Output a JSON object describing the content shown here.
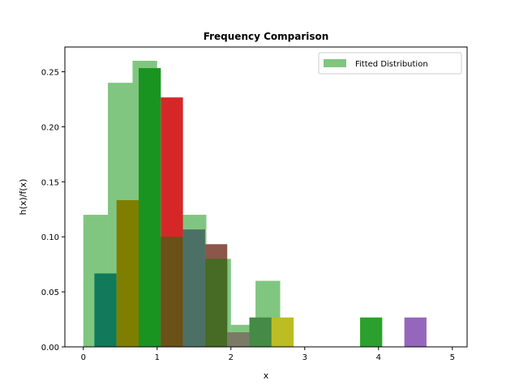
{
  "chart_data": {
    "type": "bar",
    "title": "Frequency Comparison",
    "xlabel": "x",
    "ylabel": "h(x)/f(x)",
    "xlim": [
      -0.25,
      5.2
    ],
    "ylim": [
      0,
      0.2725
    ],
    "xticks": [
      0,
      1,
      2,
      3,
      4,
      5
    ],
    "yticks": [
      0.0,
      0.05,
      0.1,
      0.15,
      0.2,
      0.25
    ],
    "grid": false,
    "legend": {
      "position": "upper-right",
      "entries": [
        "Fitted Distribution"
      ]
    },
    "series": [
      {
        "name": "Fitted Distribution",
        "color": "#2ca02c",
        "opacity": 0.6,
        "bin_edges": [
          0.0,
          0.333,
          0.667,
          1.0,
          1.333,
          1.667,
          2.0,
          2.333,
          2.667
        ],
        "values": [
          0.12,
          0.24,
          0.26,
          0.1,
          0.12,
          0.08,
          0.02,
          0.06
        ]
      },
      {
        "color": "#1f77b4",
        "opacity": 0.75,
        "bars": [
          {
            "x0": 0.15,
            "x1": 0.45,
            "value": 0.0667,
            "color": "#107a5a",
            "opacity": 1.0
          },
          {
            "x0": 0.45,
            "x1": 0.75,
            "value": 0.1333,
            "color": "#807e00",
            "opacity": 1.0
          },
          {
            "x0": 0.75,
            "x1": 1.05,
            "value": 0.2533,
            "color": "#1a9421",
            "opacity": 1.0
          },
          {
            "x0": 1.05,
            "x1": 1.35,
            "value": 0.2267,
            "color": "#d62728",
            "opacity": 1.0
          },
          {
            "x0": 1.05,
            "x1": 1.35,
            "value": 0.1,
            "color": "#6b5018",
            "opacity": 1.0
          },
          {
            "x0": 1.35,
            "x1": 1.65,
            "value": 0.1067,
            "color": "#4c7066",
            "opacity": 1.0
          },
          {
            "x0": 1.65,
            "x1": 1.95,
            "value": 0.0933,
            "color": "#8c564b",
            "opacity": 1.0
          },
          {
            "x0": 1.65,
            "x1": 1.95,
            "value": 0.08,
            "color": "#476b24",
            "opacity": 1.0
          },
          {
            "x0": 1.95,
            "x1": 2.25,
            "value": 0.0133,
            "color": "#7a7a67",
            "opacity": 1.0
          },
          {
            "x0": 2.25,
            "x1": 2.55,
            "value": 0.0267,
            "color": "#458a45",
            "opacity": 1.0
          },
          {
            "x0": 2.55,
            "x1": 2.85,
            "value": 0.0267,
            "color": "#bcbd22",
            "opacity": 1.0
          },
          {
            "x0": 3.75,
            "x1": 4.05,
            "value": 0.0267,
            "color": "#2ca02c",
            "opacity": 1.0
          },
          {
            "x0": 4.35,
            "x1": 4.65,
            "value": 0.0267,
            "color": "#9467bd",
            "opacity": 1.0
          }
        ]
      }
    ]
  }
}
